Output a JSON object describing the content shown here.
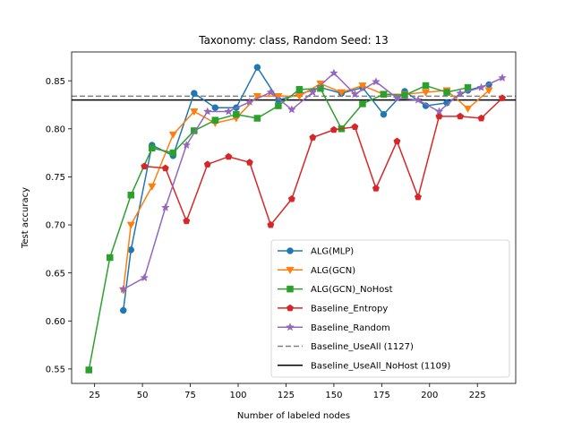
{
  "chart_data": {
    "type": "line",
    "title": "Taxonomy: class, Random Seed: 13",
    "xlabel": "Number of labeled nodes",
    "ylabel": "Test accuracy",
    "xlim": [
      13,
      245
    ],
    "ylim": [
      0.535,
      0.88
    ],
    "xticks": [
      25,
      50,
      75,
      100,
      125,
      150,
      175,
      200,
      225
    ],
    "yticks": [
      0.55,
      0.6,
      0.65,
      0.7,
      0.75,
      0.8,
      0.85
    ],
    "ytick_labels": [
      "0.55",
      "0.60",
      "0.65",
      "0.70",
      "0.75",
      "0.80",
      "0.85"
    ],
    "grid": false,
    "legend_position": "lower right",
    "series": [
      {
        "name": "ALG(MLP)",
        "color": "#1f77b4",
        "marker": "circle",
        "x": [
          40,
          44,
          55,
          66,
          77,
          88,
          99,
          110,
          121,
          132,
          143,
          154,
          165,
          176,
          187,
          198,
          209,
          220,
          231
        ],
        "y": [
          0.611,
          0.674,
          0.783,
          0.772,
          0.837,
          0.822,
          0.822,
          0.864,
          0.83,
          0.836,
          0.843,
          0.837,
          0.843,
          0.815,
          0.839,
          0.824,
          0.827,
          0.84,
          0.846
        ]
      },
      {
        "name": "ALG(GCN)",
        "color": "#ff7f0e",
        "marker": "triangle-down",
        "x": [
          40,
          44,
          55,
          66,
          77,
          88,
          99,
          110,
          121,
          132,
          143,
          154,
          165,
          176,
          187,
          198,
          209,
          220,
          231
        ],
        "y": [
          0.632,
          0.7,
          0.74,
          0.794,
          0.818,
          0.806,
          0.811,
          0.834,
          0.834,
          0.834,
          0.847,
          0.838,
          0.845,
          0.836,
          0.836,
          0.838,
          0.84,
          0.821,
          0.84
        ]
      },
      {
        "name": "ALG(GCN)_NoHost",
        "color": "#2ca02c",
        "marker": "square",
        "x": [
          22,
          33,
          44,
          55,
          66,
          77,
          88,
          99,
          110,
          121,
          132,
          143,
          154,
          165,
          176,
          187,
          198,
          209,
          220
        ],
        "y": [
          0.549,
          0.666,
          0.731,
          0.78,
          0.775,
          0.798,
          0.809,
          0.815,
          0.811,
          0.824,
          0.841,
          0.842,
          0.8,
          0.826,
          0.836,
          0.835,
          0.845,
          0.838,
          0.843
        ]
      },
      {
        "name": "Baseline_Entropy",
        "color": "#d62728",
        "marker": "pentagon",
        "x": [
          51,
          62,
          73,
          84,
          95,
          106,
          117,
          128,
          139,
          150,
          161,
          172,
          183,
          194,
          205,
          216,
          227,
          238
        ],
        "y": [
          0.761,
          0.759,
          0.704,
          0.763,
          0.771,
          0.765,
          0.7,
          0.727,
          0.791,
          0.799,
          0.802,
          0.738,
          0.787,
          0.729,
          0.813,
          0.813,
          0.811,
          0.832
        ]
      },
      {
        "name": "Baseline_Random",
        "color": "#9467bd",
        "marker": "star",
        "x": [
          40,
          51,
          62,
          73,
          84,
          95,
          106,
          117,
          128,
          139,
          150,
          161,
          172,
          183,
          194,
          205,
          216,
          227,
          238
        ],
        "y": [
          0.633,
          0.645,
          0.718,
          0.783,
          0.818,
          0.818,
          0.828,
          0.838,
          0.82,
          0.838,
          0.858,
          0.836,
          0.849,
          0.832,
          0.83,
          0.818,
          0.837,
          0.843,
          0.853
        ]
      }
    ],
    "reference_lines": [
      {
        "name": "Baseline_UseAll (1127)",
        "y": 0.834,
        "color": "#808080",
        "style": "dashed"
      },
      {
        "name": "Baseline_UseAll_NoHost (1109)",
        "y": 0.83,
        "color": "#000000",
        "style": "solid"
      }
    ]
  }
}
